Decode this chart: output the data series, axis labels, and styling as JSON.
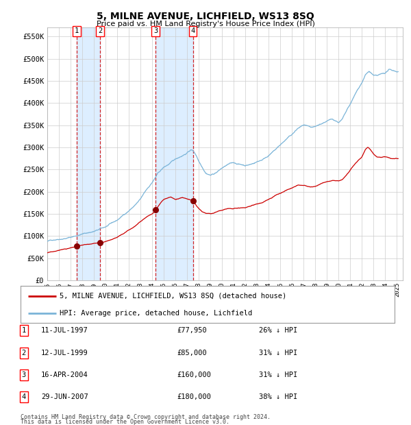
{
  "title": "5, MILNE AVENUE, LICHFIELD, WS13 8SQ",
  "subtitle": "Price paid vs. HM Land Registry's House Price Index (HPI)",
  "xlim_start": 1995.0,
  "xlim_end": 2025.5,
  "ylim": [
    0,
    570000
  ],
  "yticks": [
    0,
    50000,
    100000,
    150000,
    200000,
    250000,
    300000,
    350000,
    400000,
    450000,
    500000,
    550000
  ],
  "ytick_labels": [
    "£0",
    "£50K",
    "£100K",
    "£150K",
    "£200K",
    "£250K",
    "£300K",
    "£350K",
    "£400K",
    "£450K",
    "£500K",
    "£550K"
  ],
  "xtick_labels": [
    "1995",
    "1996",
    "1997",
    "1998",
    "1999",
    "2000",
    "2001",
    "2002",
    "2003",
    "2004",
    "2005",
    "2006",
    "2007",
    "2008",
    "2009",
    "2010",
    "2011",
    "2012",
    "2013",
    "2014",
    "2015",
    "2016",
    "2017",
    "2018",
    "2019",
    "2020",
    "2021",
    "2022",
    "2023",
    "2024",
    "2025"
  ],
  "purchases": [
    {
      "label": "1",
      "date_float": 1997.53,
      "price": 77950
    },
    {
      "label": "2",
      "date_float": 1999.53,
      "price": 85000
    },
    {
      "label": "3",
      "date_float": 2004.29,
      "price": 160000
    },
    {
      "label": "4",
      "date_float": 2007.49,
      "price": 180000
    }
  ],
  "legend_line1": "5, MILNE AVENUE, LICHFIELD, WS13 8SQ (detached house)",
  "legend_line2": "HPI: Average price, detached house, Lichfield",
  "table": [
    {
      "num": "1",
      "date": "11-JUL-1997",
      "price": "£77,950",
      "hpi": "26% ↓ HPI"
    },
    {
      "num": "2",
      "date": "12-JUL-1999",
      "price": "£85,000",
      "hpi": "31% ↓ HPI"
    },
    {
      "num": "3",
      "date": "16-APR-2004",
      "price": "£160,000",
      "hpi": "31% ↓ HPI"
    },
    {
      "num": "4",
      "date": "29-JUN-2007",
      "price": "£180,000",
      "hpi": "38% ↓ HPI"
    }
  ],
  "footnote1": "Contains HM Land Registry data © Crown copyright and database right 2024.",
  "footnote2": "This data is licensed under the Open Government Licence v3.0.",
  "hpi_color": "#7ab4d8",
  "price_color": "#cc0000",
  "purchase_marker_color": "#880000",
  "dashed_line_color": "#cc0000",
  "shade_color": "#ddeeff",
  "background_color": "#ffffff",
  "grid_color": "#cccccc",
  "hpi_key_points": [
    [
      1995.0,
      90000
    ],
    [
      1996.0,
      97000
    ],
    [
      1997.0,
      102000
    ],
    [
      1997.5,
      106000
    ],
    [
      1998.0,
      110000
    ],
    [
      1999.0,
      116000
    ],
    [
      1999.5,
      120000
    ],
    [
      2000.0,
      125000
    ],
    [
      2001.0,
      138000
    ],
    [
      2002.0,
      160000
    ],
    [
      2002.5,
      172000
    ],
    [
      2003.0,
      185000
    ],
    [
      2003.5,
      205000
    ],
    [
      2004.0,
      222000
    ],
    [
      2004.5,
      242000
    ],
    [
      2005.0,
      255000
    ],
    [
      2005.5,
      263000
    ],
    [
      2006.0,
      272000
    ],
    [
      2006.5,
      280000
    ],
    [
      2007.0,
      288000
    ],
    [
      2007.3,
      295000
    ],
    [
      2007.5,
      293000
    ],
    [
      2007.8,
      282000
    ],
    [
      2008.0,
      270000
    ],
    [
      2008.3,
      258000
    ],
    [
      2008.6,
      246000
    ],
    [
      2009.0,
      242000
    ],
    [
      2009.3,
      245000
    ],
    [
      2009.6,
      250000
    ],
    [
      2010.0,
      258000
    ],
    [
      2010.5,
      265000
    ],
    [
      2011.0,
      268000
    ],
    [
      2011.5,
      265000
    ],
    [
      2012.0,
      263000
    ],
    [
      2012.5,
      266000
    ],
    [
      2013.0,
      272000
    ],
    [
      2013.5,
      278000
    ],
    [
      2014.0,
      288000
    ],
    [
      2014.5,
      298000
    ],
    [
      2015.0,
      310000
    ],
    [
      2015.5,
      322000
    ],
    [
      2016.0,
      332000
    ],
    [
      2016.5,
      345000
    ],
    [
      2017.0,
      352000
    ],
    [
      2017.3,
      348000
    ],
    [
      2017.6,
      342000
    ],
    [
      2018.0,
      342000
    ],
    [
      2018.5,
      348000
    ],
    [
      2019.0,
      355000
    ],
    [
      2019.5,
      358000
    ],
    [
      2020.0,
      352000
    ],
    [
      2020.3,
      358000
    ],
    [
      2020.6,
      372000
    ],
    [
      2021.0,
      390000
    ],
    [
      2021.5,
      415000
    ],
    [
      2022.0,
      438000
    ],
    [
      2022.3,
      455000
    ],
    [
      2022.6,
      462000
    ],
    [
      2022.8,
      458000
    ],
    [
      2023.0,
      452000
    ],
    [
      2023.3,
      450000
    ],
    [
      2023.6,
      452000
    ],
    [
      2024.0,
      455000
    ],
    [
      2024.3,
      462000
    ],
    [
      2024.6,
      460000
    ],
    [
      2025.0,
      458000
    ]
  ],
  "red_key_points": [
    [
      1995.0,
      65000
    ],
    [
      1995.5,
      67000
    ],
    [
      1996.0,
      70000
    ],
    [
      1996.5,
      73000
    ],
    [
      1997.0,
      75000
    ],
    [
      1997.53,
      77950
    ],
    [
      1998.0,
      80000
    ],
    [
      1998.5,
      82000
    ],
    [
      1999.0,
      83500
    ],
    [
      1999.53,
      85000
    ],
    [
      2000.0,
      88000
    ],
    [
      2000.5,
      92000
    ],
    [
      2001.0,
      97000
    ],
    [
      2001.5,
      105000
    ],
    [
      2002.0,
      114000
    ],
    [
      2002.5,
      124000
    ],
    [
      2003.0,
      135000
    ],
    [
      2003.5,
      145000
    ],
    [
      2004.0,
      153000
    ],
    [
      2004.29,
      160000
    ],
    [
      2004.5,
      170000
    ],
    [
      2004.8,
      180000
    ],
    [
      2005.0,
      185000
    ],
    [
      2005.3,
      188000
    ],
    [
      2005.6,
      190000
    ],
    [
      2006.0,
      185000
    ],
    [
      2006.3,
      186000
    ],
    [
      2006.6,
      188000
    ],
    [
      2007.0,
      185000
    ],
    [
      2007.49,
      180000
    ],
    [
      2007.7,
      173000
    ],
    [
      2008.0,
      163000
    ],
    [
      2008.3,
      156000
    ],
    [
      2008.6,
      152000
    ],
    [
      2009.0,
      150000
    ],
    [
      2009.3,
      152000
    ],
    [
      2009.6,
      155000
    ],
    [
      2010.0,
      158000
    ],
    [
      2010.5,
      161000
    ],
    [
      2011.0,
      160000
    ],
    [
      2011.5,
      161000
    ],
    [
      2012.0,
      163000
    ],
    [
      2012.5,
      166000
    ],
    [
      2013.0,
      170000
    ],
    [
      2013.5,
      175000
    ],
    [
      2014.0,
      182000
    ],
    [
      2014.5,
      190000
    ],
    [
      2015.0,
      196000
    ],
    [
      2015.5,
      203000
    ],
    [
      2016.0,
      208000
    ],
    [
      2016.5,
      214000
    ],
    [
      2017.0,
      214000
    ],
    [
      2017.3,
      212000
    ],
    [
      2017.6,
      211000
    ],
    [
      2018.0,
      212000
    ],
    [
      2018.5,
      217000
    ],
    [
      2019.0,
      222000
    ],
    [
      2019.5,
      225000
    ],
    [
      2020.0,
      223000
    ],
    [
      2020.3,
      226000
    ],
    [
      2020.6,
      235000
    ],
    [
      2021.0,
      248000
    ],
    [
      2021.5,
      265000
    ],
    [
      2022.0,
      278000
    ],
    [
      2022.3,
      295000
    ],
    [
      2022.5,
      300000
    ],
    [
      2022.7,
      295000
    ],
    [
      2023.0,
      283000
    ],
    [
      2023.3,
      278000
    ],
    [
      2023.6,
      276000
    ],
    [
      2024.0,
      278000
    ],
    [
      2024.3,
      277000
    ],
    [
      2024.6,
      275000
    ],
    [
      2025.0,
      274000
    ]
  ]
}
